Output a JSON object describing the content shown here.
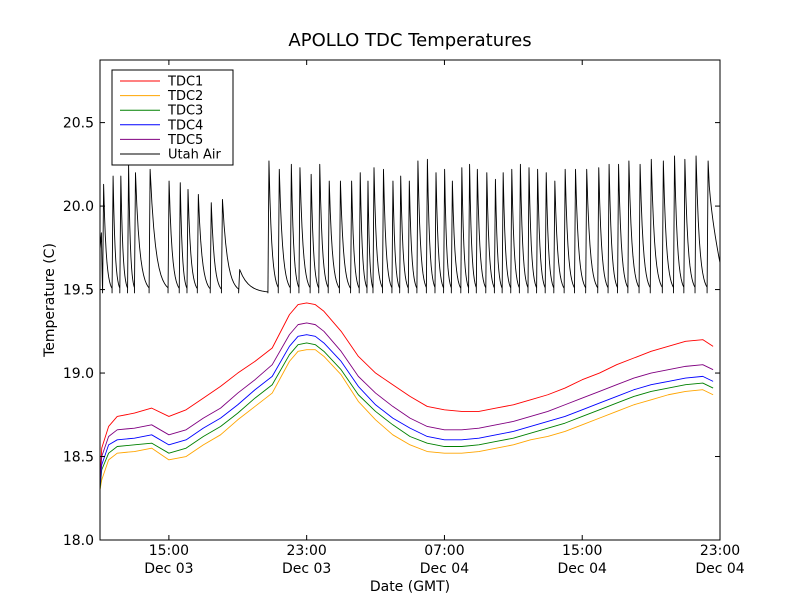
{
  "chart_data": {
    "type": "line",
    "title": "APOLLO TDC Temperatures",
    "xlabel": "Date (GMT)",
    "ylabel": "Temperature (C)",
    "x_unit": "hours since Dec 03 11:00 GMT",
    "xlim": [
      0,
      36
    ],
    "ylim": [
      18.0,
      20.875
    ],
    "yticks": [
      18.0,
      18.5,
      19.0,
      19.5,
      20.0,
      20.5
    ],
    "ytick_labels": [
      "18.0",
      "18.5",
      "19.0",
      "19.5",
      "20.0",
      "20.5"
    ],
    "xticks": [
      {
        "x": 4,
        "time": "15:00",
        "date": "Dec 03"
      },
      {
        "x": 12,
        "time": "23:00",
        "date": "Dec 03"
      },
      {
        "x": 20,
        "time": "07:00",
        "date": "Dec 04"
      },
      {
        "x": 28,
        "time": "15:00",
        "date": "Dec 04"
      },
      {
        "x": 36,
        "time": "23:00",
        "date": "Dec 04"
      }
    ],
    "legend_position": "top-left",
    "x": [
      0,
      0.1,
      0.5,
      1,
      2,
      3,
      4,
      5,
      6,
      7,
      8,
      9,
      10,
      11,
      11.5,
      12,
      12.5,
      13,
      14,
      15,
      16,
      17,
      18,
      19,
      20,
      21,
      22,
      23,
      24,
      25,
      26,
      27,
      28,
      29,
      30,
      31,
      32,
      33,
      34,
      35,
      35.6
    ],
    "series": [
      {
        "name": "TDC1",
        "color": "#ff0000",
        "values": [
          18.35,
          18.55,
          18.68,
          18.74,
          18.76,
          18.79,
          18.74,
          18.78,
          18.85,
          18.92,
          19.0,
          19.07,
          19.15,
          19.35,
          19.41,
          19.42,
          19.41,
          19.37,
          19.25,
          19.1,
          19.0,
          18.93,
          18.86,
          18.8,
          18.78,
          18.77,
          18.77,
          18.79,
          18.81,
          18.84,
          18.87,
          18.91,
          18.96,
          19.0,
          19.05,
          19.09,
          19.13,
          19.16,
          19.19,
          19.2,
          19.16
        ]
      },
      {
        "name": "TDC2",
        "color": "#ffa500",
        "values": [
          18.3,
          18.36,
          18.48,
          18.52,
          18.53,
          18.55,
          18.48,
          18.5,
          18.57,
          18.63,
          18.72,
          18.8,
          18.88,
          19.07,
          19.13,
          19.14,
          19.14,
          19.1,
          18.99,
          18.83,
          18.72,
          18.63,
          18.57,
          18.53,
          18.52,
          18.52,
          18.53,
          18.55,
          18.57,
          18.6,
          18.62,
          18.65,
          18.69,
          18.73,
          18.77,
          18.81,
          18.84,
          18.87,
          18.89,
          18.9,
          18.87
        ]
      },
      {
        "name": "TDC3",
        "color": "#008000",
        "values": [
          18.3,
          18.42,
          18.52,
          18.56,
          18.57,
          18.58,
          18.52,
          18.55,
          18.62,
          18.68,
          18.76,
          18.85,
          18.93,
          19.11,
          19.17,
          19.18,
          19.17,
          19.13,
          19.02,
          18.87,
          18.77,
          18.69,
          18.62,
          18.58,
          18.56,
          18.56,
          18.57,
          18.59,
          18.61,
          18.64,
          18.67,
          18.7,
          18.74,
          18.78,
          18.82,
          18.86,
          18.89,
          18.91,
          18.93,
          18.94,
          18.91
        ]
      },
      {
        "name": "TDC4",
        "color": "#0000ff",
        "values": [
          18.32,
          18.45,
          18.57,
          18.6,
          18.61,
          18.63,
          18.57,
          18.6,
          18.67,
          18.73,
          18.81,
          18.9,
          18.98,
          19.16,
          19.22,
          19.23,
          19.22,
          19.18,
          19.07,
          18.92,
          18.81,
          18.73,
          18.67,
          18.62,
          18.6,
          18.6,
          18.61,
          18.63,
          18.65,
          18.68,
          18.71,
          18.74,
          18.78,
          18.82,
          18.86,
          18.9,
          18.93,
          18.95,
          18.97,
          18.98,
          18.95
        ]
      },
      {
        "name": "TDC5",
        "color": "#800080",
        "values": [
          18.34,
          18.5,
          18.62,
          18.66,
          18.67,
          18.69,
          18.63,
          18.66,
          18.73,
          18.79,
          18.88,
          18.96,
          19.05,
          19.23,
          19.29,
          19.3,
          19.29,
          19.25,
          19.13,
          18.98,
          18.88,
          18.8,
          18.73,
          18.68,
          18.66,
          18.66,
          18.67,
          18.69,
          18.71,
          18.74,
          18.77,
          18.81,
          18.85,
          18.89,
          18.93,
          18.97,
          19.0,
          19.02,
          19.04,
          19.05,
          19.02
        ]
      },
      {
        "name": "Utah Air",
        "color": "#000000",
        "sawtooth": true,
        "floor": 19.48,
        "onsets": [
          0.15,
          0.7,
          1.15,
          1.6,
          2.0,
          2.85,
          3.95,
          4.6,
          5.05,
          5.65,
          6.4,
          7.05,
          8.05,
          9.75,
          10.35,
          11.05,
          11.55,
          12.2,
          12.7,
          13.25,
          13.9,
          14.55,
          15.05,
          15.5,
          15.85,
          16.4,
          16.95,
          17.4,
          17.9,
          18.4,
          18.95,
          19.45,
          19.95,
          20.4,
          20.95,
          21.4,
          21.85,
          22.4,
          22.9,
          23.35,
          23.85,
          24.35,
          24.85,
          25.35,
          25.85,
          26.35,
          26.95,
          27.55,
          28.2,
          28.9,
          29.5,
          30.05,
          30.65,
          31.3,
          31.95,
          32.65,
          33.3,
          33.9,
          34.55,
          35.25
        ],
        "peaks": [
          20.13,
          20.18,
          20.18,
          20.25,
          20.2,
          20.22,
          20.15,
          20.14,
          20.1,
          20.07,
          20.02,
          20.04,
          19.62,
          20.27,
          20.22,
          20.25,
          20.23,
          20.19,
          20.25,
          20.15,
          20.15,
          20.15,
          20.2,
          20.15,
          20.23,
          20.22,
          20.15,
          20.18,
          20.15,
          20.27,
          20.28,
          20.2,
          20.22,
          20.15,
          20.23,
          20.25,
          20.22,
          20.2,
          20.16,
          20.2,
          20.22,
          20.25,
          20.23,
          20.22,
          20.2,
          20.15,
          20.22,
          20.22,
          20.22,
          20.23,
          20.25,
          20.25,
          20.27,
          20.25,
          20.28,
          20.27,
          20.3,
          20.28,
          20.3,
          20.27
        ],
        "end_value": 19.66
      }
    ]
  }
}
